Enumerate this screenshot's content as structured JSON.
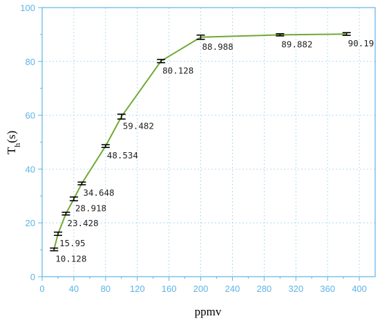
{
  "chart_data": {
    "type": "line",
    "xlabel": "ppmv",
    "ylabel": "T",
    "ylabel_sub": "h",
    "ylabel_suffix": "(s)",
    "xlim": [
      0,
      420
    ],
    "ylim": [
      0,
      100
    ],
    "xticks": [
      0,
      40,
      80,
      120,
      160,
      200,
      240,
      280,
      320,
      360,
      400
    ],
    "yticks": [
      0,
      20,
      40,
      60,
      80,
      100
    ],
    "grid": true,
    "colors": {
      "axis": "#5ab4e6",
      "line": "#6fa832",
      "marker": "#000000",
      "grid": "#9fd0ee"
    },
    "x": [
      15,
      20,
      30,
      40,
      50,
      80,
      100,
      150,
      200,
      300,
      384
    ],
    "y": [
      10.128,
      15.95,
      23.428,
      28.918,
      34.648,
      48.534,
      59.482,
      80.128,
      88.988,
      89.882,
      90.19
    ],
    "error": [
      0.5,
      0.6,
      0.5,
      0.7,
      0.5,
      0.5,
      0.9,
      0.6,
      0.8,
      0.4,
      0.5
    ],
    "data_labels": [
      "10.128",
      "15.95",
      "23.428",
      "28.918",
      "34.648",
      "48.534",
      "59.482",
      "80.128",
      "88.988",
      "89.882",
      "90.19"
    ]
  }
}
